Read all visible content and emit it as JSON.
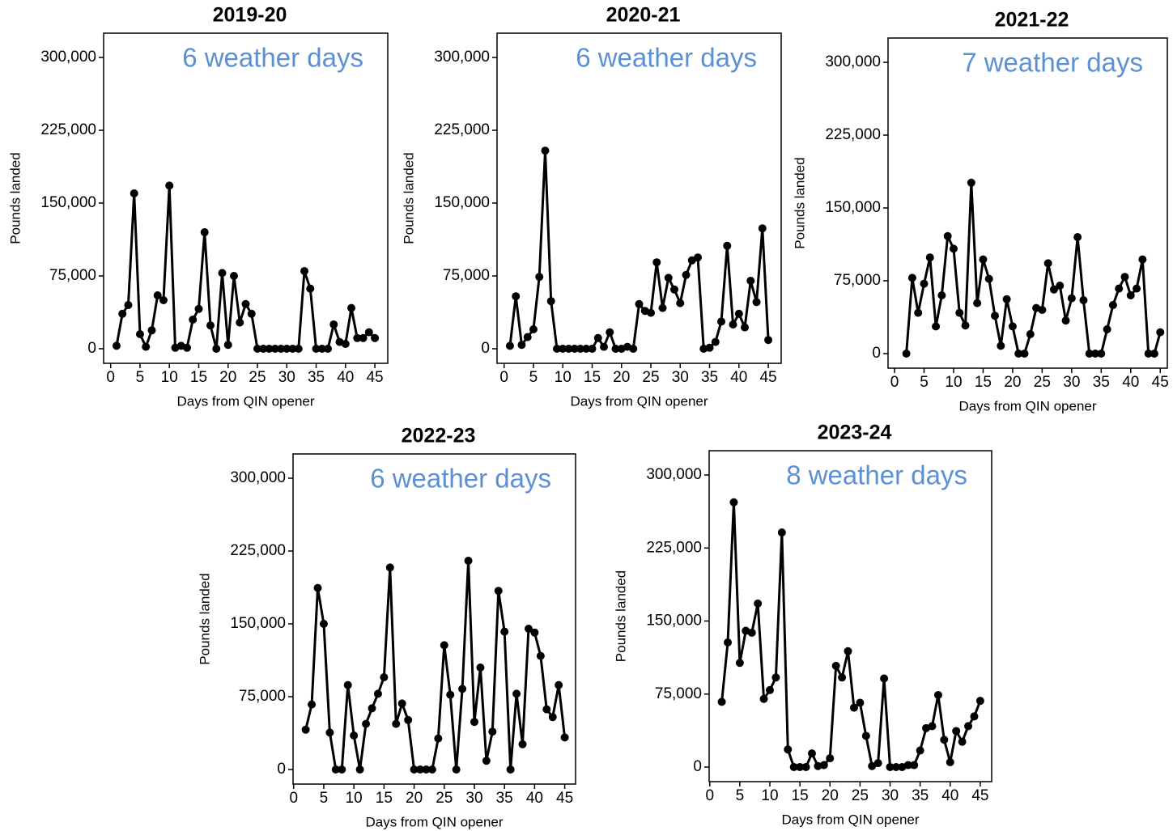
{
  "chart_data": [
    {
      "type": "line",
      "title": "2019-20",
      "annotation": "6 weather days",
      "annotation_color": "#5b8fd6",
      "x_label": "Days from QIN opener",
      "y_label": "Pounds landed",
      "color": "#000000",
      "x": [
        1,
        2,
        3,
        4,
        5,
        6,
        7,
        8,
        9,
        10,
        11,
        12,
        13,
        14,
        15,
        16,
        17,
        18,
        19,
        20,
        21,
        22,
        23,
        24,
        25,
        26,
        27,
        28,
        29,
        30,
        31,
        32,
        33,
        34,
        35,
        36,
        37,
        38,
        39,
        40,
        41,
        42,
        43,
        44,
        45
      ],
      "values": [
        3000,
        36000,
        45000,
        160000,
        15000,
        2000,
        19000,
        55000,
        50000,
        168000,
        1000,
        3000,
        1000,
        30000,
        41000,
        120000,
        24000,
        0,
        78000,
        4000,
        75000,
        27000,
        46000,
        36000,
        0,
        0,
        0,
        0,
        0,
        0,
        0,
        0,
        80000,
        62000,
        0,
        0,
        0,
        25000,
        7000,
        5000,
        42000,
        11000,
        11000,
        17000,
        11000
      ],
      "xlim": [
        -1.2,
        47.2
      ],
      "ylim": [
        -15000,
        325000
      ],
      "xticks": [
        0,
        5,
        10,
        15,
        20,
        25,
        30,
        35,
        40,
        45
      ],
      "yticks": [
        0,
        {
          "value": 75000,
          "label": "75,000"
        },
        {
          "value": 150000,
          "label": "150,000"
        },
        {
          "value": 225000,
          "label": "225,000"
        },
        {
          "value": 300000,
          "label": "300,000"
        }
      ]
    },
    {
      "type": "line",
      "title": "2020-21",
      "annotation": "6 weather days",
      "annotation_color": "#5b8fd6",
      "x_label": "Days from QIN opener",
      "y_label": "Pounds landed",
      "color": "#000000",
      "x": [
        1,
        2,
        3,
        4,
        5,
        6,
        7,
        8,
        9,
        10,
        11,
        12,
        13,
        14,
        15,
        16,
        17,
        18,
        19,
        20,
        21,
        22,
        23,
        24,
        25,
        26,
        27,
        28,
        29,
        30,
        31,
        32,
        33,
        34,
        35,
        36,
        37,
        38,
        39,
        40,
        41,
        42,
        43,
        44,
        45
      ],
      "values": [
        3000,
        54000,
        4000,
        12000,
        20000,
        74000,
        204000,
        49000,
        0,
        0,
        0,
        0,
        0,
        0,
        0,
        11000,
        2000,
        17000,
        0,
        0,
        2000,
        0,
        46000,
        39000,
        37000,
        89000,
        42000,
        73000,
        61000,
        47000,
        76000,
        91000,
        94000,
        0,
        1000,
        7000,
        28000,
        106000,
        25000,
        36000,
        22000,
        70000,
        48000,
        124000,
        9000
      ],
      "xlim": [
        -1.2,
        47.2
      ],
      "ylim": [
        -15000,
        325000
      ],
      "xticks": [
        0,
        5,
        10,
        15,
        20,
        25,
        30,
        35,
        40,
        45
      ],
      "yticks": [
        0,
        {
          "value": 75000,
          "label": "75,000"
        },
        {
          "value": 150000,
          "label": "150,000"
        },
        {
          "value": 225000,
          "label": "225,000"
        },
        {
          "value": 300000,
          "label": "300,000"
        }
      ]
    },
    {
      "type": "line",
      "title": "2021-22",
      "annotation": "7 weather days",
      "annotation_color": "#5b8fd6",
      "x_label": "Days from QIN opener",
      "y_label": "Pounds landed",
      "color": "#000000",
      "x": [
        2,
        3,
        4,
        5,
        6,
        7,
        8,
        9,
        10,
        11,
        12,
        13,
        14,
        15,
        16,
        17,
        18,
        19,
        20,
        21,
        22,
        23,
        24,
        25,
        26,
        27,
        28,
        29,
        30,
        31,
        32,
        33,
        34,
        35,
        36,
        37,
        38,
        39,
        40,
        41,
        42,
        43,
        44,
        45
      ],
      "values": [
        0,
        78000,
        42000,
        72000,
        99000,
        28000,
        60000,
        121000,
        108000,
        42000,
        29000,
        176000,
        52000,
        97000,
        77000,
        39000,
        8000,
        56000,
        28000,
        0,
        0,
        20000,
        47000,
        45000,
        93000,
        66000,
        70000,
        34000,
        57000,
        120000,
        55000,
        0,
        0,
        0,
        25000,
        50000,
        67000,
        79000,
        60000,
        67000,
        97000,
        0,
        0,
        22000
      ],
      "xlim": [
        -1.1,
        46.2
      ],
      "ylim": [
        -15000,
        325000
      ],
      "xticks": [
        0,
        5,
        10,
        15,
        20,
        25,
        30,
        35,
        40,
        45
      ],
      "yticks": [
        0,
        {
          "value": 75000,
          "label": "75,000"
        },
        {
          "value": 150000,
          "label": "150,000"
        },
        {
          "value": 225000,
          "label": "225,000"
        },
        {
          "value": 300000,
          "label": "300,000"
        }
      ]
    },
    {
      "type": "line",
      "title": "2022-23",
      "annotation": "6 weather days",
      "annotation_color": "#5b8fd6",
      "x_label": "Days from QIN opener",
      "y_label": "Pounds landed",
      "color": "#000000",
      "x": [
        2,
        3,
        4,
        5,
        6,
        7,
        8,
        9,
        10,
        11,
        12,
        13,
        14,
        15,
        16,
        17,
        18,
        19,
        20,
        21,
        22,
        23,
        24,
        25,
        26,
        27,
        28,
        29,
        30,
        31,
        32,
        33,
        34,
        35,
        36,
        37,
        38,
        39,
        40,
        41,
        42,
        43,
        44,
        45
      ],
      "values": [
        41000,
        67000,
        187000,
        150000,
        38000,
        0,
        0,
        87000,
        35000,
        0,
        47000,
        63000,
        78000,
        95000,
        208000,
        47000,
        68000,
        51000,
        0,
        0,
        0,
        0,
        32000,
        128000,
        77000,
        0,
        83000,
        215000,
        49000,
        105000,
        9000,
        39000,
        184000,
        142000,
        0,
        78000,
        26000,
        145000,
        141000,
        117000,
        62000,
        54000,
        87000,
        33000
      ],
      "xlim": [
        -0.1,
        46.8
      ],
      "ylim": [
        -15000,
        325000
      ],
      "xticks": [
        0,
        5,
        10,
        15,
        20,
        25,
        30,
        35,
        40,
        45
      ],
      "yticks": [
        0,
        {
          "value": 75000,
          "label": "75,000"
        },
        {
          "value": 150000,
          "label": "150,000"
        },
        {
          "value": 225000,
          "label": "225,000"
        },
        {
          "value": 300000,
          "label": "300,000"
        }
      ]
    },
    {
      "type": "line",
      "title": "2023-24",
      "annotation": "8 weather days",
      "annotation_color": "#5b8fd6",
      "x_label": "Days from QIN opener",
      "y_label": "Pounds landed",
      "color": "#000000",
      "x": [
        2,
        3,
        4,
        5,
        6,
        7,
        8,
        9,
        10,
        11,
        12,
        13,
        14,
        15,
        16,
        17,
        18,
        19,
        20,
        21,
        22,
        23,
        24,
        25,
        26,
        27,
        28,
        29,
        30,
        31,
        32,
        33,
        34,
        35,
        36,
        37,
        38,
        39,
        40,
        41,
        42,
        43,
        44,
        45
      ],
      "values": [
        67000,
        128000,
        272000,
        107000,
        140000,
        138000,
        168000,
        70000,
        79000,
        92000,
        241000,
        18000,
        0,
        0,
        0,
        14000,
        1000,
        2000,
        9000,
        104000,
        92000,
        119000,
        61000,
        66000,
        32000,
        1000,
        4000,
        91000,
        0,
        0,
        0,
        2000,
        2000,
        17000,
        40000,
        42000,
        74000,
        28000,
        5000,
        37000,
        26000,
        42000,
        52000,
        68000
      ],
      "xlim": [
        -0.1,
        46.9
      ],
      "ylim": [
        -15000,
        325000
      ],
      "xticks": [
        0,
        5,
        10,
        15,
        20,
        25,
        30,
        35,
        40,
        45
      ],
      "yticks": [
        0,
        {
          "value": 75000,
          "label": "75,000"
        },
        {
          "value": 150000,
          "label": "150,000"
        },
        {
          "value": 225000,
          "label": "225,000"
        },
        {
          "value": 300000,
          "label": "300,000"
        }
      ]
    }
  ]
}
